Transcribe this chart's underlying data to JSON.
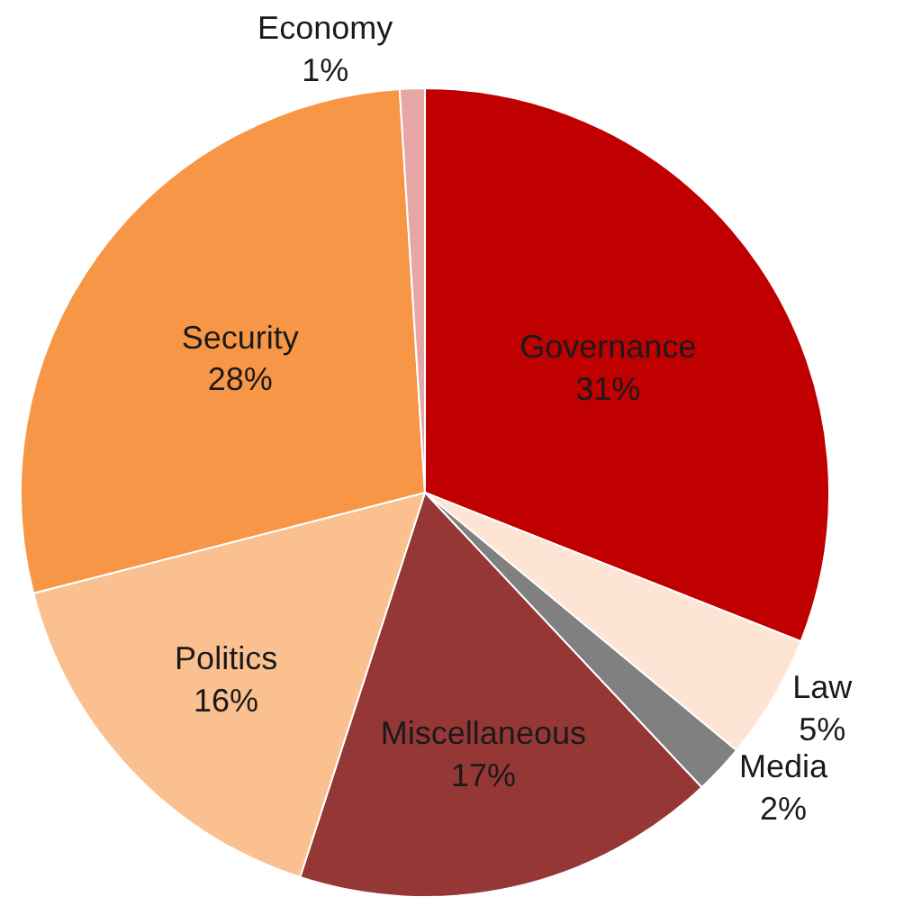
{
  "chart_data": {
    "type": "pie",
    "categories": [
      "Governance",
      "Law",
      "Media",
      "Miscellaneous",
      "Politics",
      "Security",
      "Economy"
    ],
    "values": [
      31,
      5,
      2,
      17,
      16,
      28,
      1
    ],
    "value_labels": [
      "31%",
      "5%",
      "2%",
      "17%",
      "16%",
      "28%",
      "1%"
    ],
    "colors": [
      "#c00000",
      "#fde4d4",
      "#808080",
      "#953735",
      "#fac090",
      "#f79646",
      "#e6a6a6"
    ],
    "legend": false
  }
}
